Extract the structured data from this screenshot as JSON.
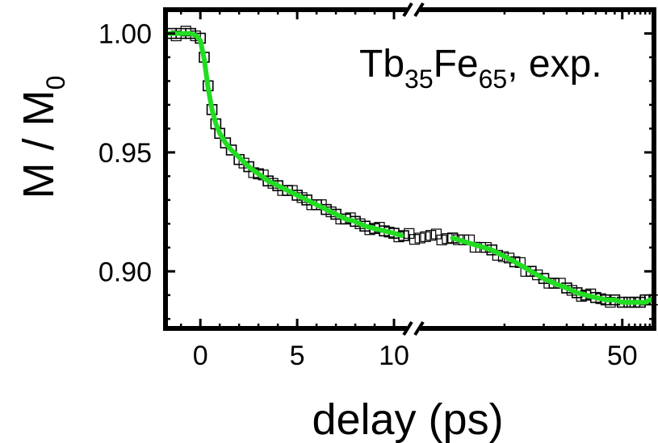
{
  "chart_data": {
    "type": "scatter",
    "xlabel": "delay (ps)",
    "ylabel_main": "M / M",
    "ylabel_sub": "0",
    "annotation": {
      "p1": "Tb",
      "s1": "35",
      "p2": "Fe",
      "s2": "65",
      "p3": ", exp."
    },
    "xlim": [
      -1.8,
      80
    ],
    "ylim": [
      0.876,
      1.01
    ],
    "x_break": 11.0,
    "x_scale": "broken: linear -1.8 to 11, then compressed 11 to 80",
    "xticks": [
      {
        "value": 0,
        "label": "0"
      },
      {
        "value": 5,
        "label": "5"
      },
      {
        "value": 10,
        "label": "10"
      },
      {
        "value": 50,
        "label": "50"
      }
    ],
    "yticks": [
      {
        "value": 1.0,
        "label": "1.00"
      },
      {
        "value": 0.95,
        "label": "0.95"
      },
      {
        "value": 0.9,
        "label": "0.90"
      }
    ],
    "grid": false,
    "legend": "none",
    "series": [
      {
        "role": "measurement",
        "marker": "open-square",
        "color": "#000000",
        "x": [
          -1.5,
          -1.0,
          -0.5,
          0.0,
          0.2,
          0.4,
          0.6,
          0.8,
          1.0,
          1.3,
          1.6,
          2.0,
          2.5,
          3.0,
          3.5,
          4.0,
          4.5,
          5.0,
          5.5,
          6.0,
          6.5,
          7.0,
          7.5,
          8.0,
          8.5,
          9.0,
          9.5,
          10.0,
          10.5,
          12,
          14,
          16,
          18,
          20,
          22,
          25,
          28,
          31,
          35,
          40,
          45,
          50,
          55,
          60,
          65,
          70,
          75,
          80
        ],
        "y": [
          1.0,
          1.0,
          1.0,
          0.998,
          0.99,
          0.978,
          0.968,
          0.962,
          0.958,
          0.954,
          0.951,
          0.947,
          0.944,
          0.941,
          0.938,
          0.936,
          0.934,
          0.932,
          0.93,
          0.928,
          0.926,
          0.924,
          0.922,
          0.921,
          0.919,
          0.918,
          0.917,
          0.916,
          0.915,
          0.914,
          0.909,
          0.904,
          0.9,
          0.897,
          0.895,
          0.893,
          0.891,
          0.89,
          0.889,
          0.888,
          0.888,
          0.887,
          0.887,
          0.887,
          0.887,
          0.888,
          0.888,
          0.888
        ]
      },
      {
        "role": "fit",
        "marker": "line",
        "color": "#22dd22",
        "segments": [
          {
            "x": [
              -1.8,
              -1.0,
              -0.5,
              -0.2,
              0.0,
              0.2,
              0.4,
              0.6,
              0.8,
              1.0,
              1.3,
              1.6,
              2.0,
              2.5,
              3.0,
              3.5,
              4.0,
              4.5,
              5.0,
              5.5,
              6.0,
              6.5,
              7.0,
              7.5,
              8.0,
              8.5,
              9.0,
              9.5,
              10.0,
              10.4
            ],
            "y": [
              1.0,
              1.0,
              1.0,
              0.999,
              0.997,
              0.989,
              0.977,
              0.968,
              0.962,
              0.958,
              0.954,
              0.951,
              0.948,
              0.944,
              0.941,
              0.938,
              0.936,
              0.934,
              0.932,
              0.93,
              0.928,
              0.926,
              0.924,
              0.922,
              0.921,
              0.919,
              0.918,
              0.917,
              0.916,
              0.915
            ]
          },
          {
            "x": [
              12,
              14,
              16,
              18,
              20,
              22,
              25,
              28,
              31,
              35,
              40,
              45,
              50,
              55,
              60,
              65,
              70,
              75,
              80
            ],
            "y": [
              0.914,
              0.909,
              0.904,
              0.9,
              0.897,
              0.895,
              0.893,
              0.891,
              0.89,
              0.889,
              0.888,
              0.888,
              0.887,
              0.887,
              0.887,
              0.887,
              0.887,
              0.888,
              0.888
            ]
          }
        ]
      }
    ]
  }
}
